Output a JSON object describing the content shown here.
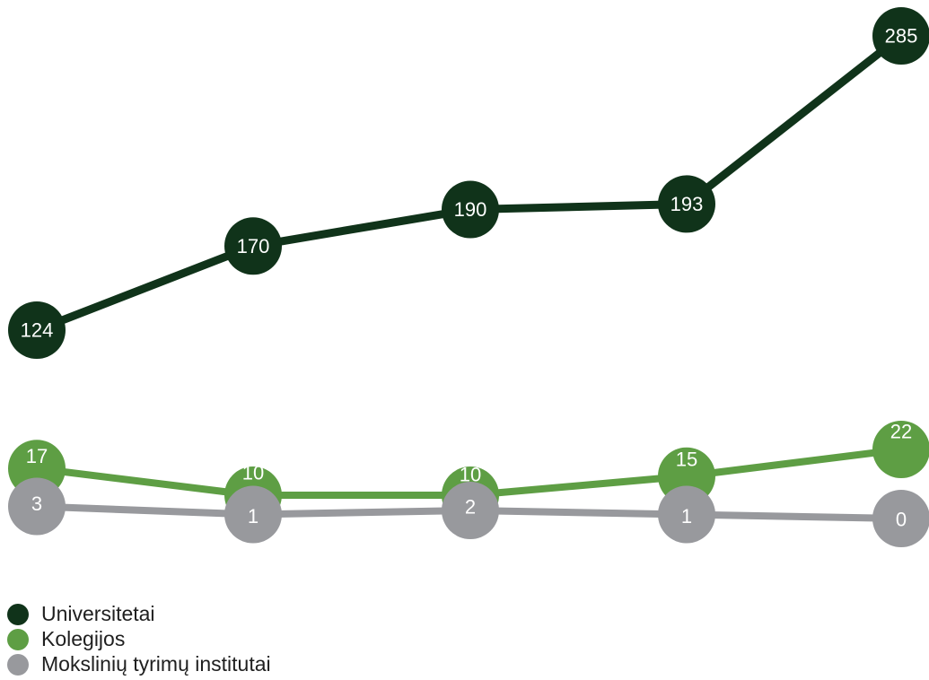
{
  "chart_data": {
    "type": "line",
    "categories": [
      "",
      "",
      "",
      "",
      ""
    ],
    "series": [
      {
        "name": "Universitetai",
        "color": "#10331a",
        "values": [
          124,
          170,
          190,
          193,
          285
        ]
      },
      {
        "name": "Kolegijos",
        "color": "#5e9e44",
        "values": [
          17,
          10,
          10,
          15,
          22
        ]
      },
      {
        "name": "Mokslinių tyrimų institutai",
        "color": "#98999d",
        "values": [
          3,
          1,
          2,
          1,
          0
        ]
      }
    ],
    "title": "",
    "xlabel": "",
    "ylabel": "",
    "data_labels": true,
    "legend_position": "bottom-left",
    "grid": false,
    "axes_visible": false
  }
}
